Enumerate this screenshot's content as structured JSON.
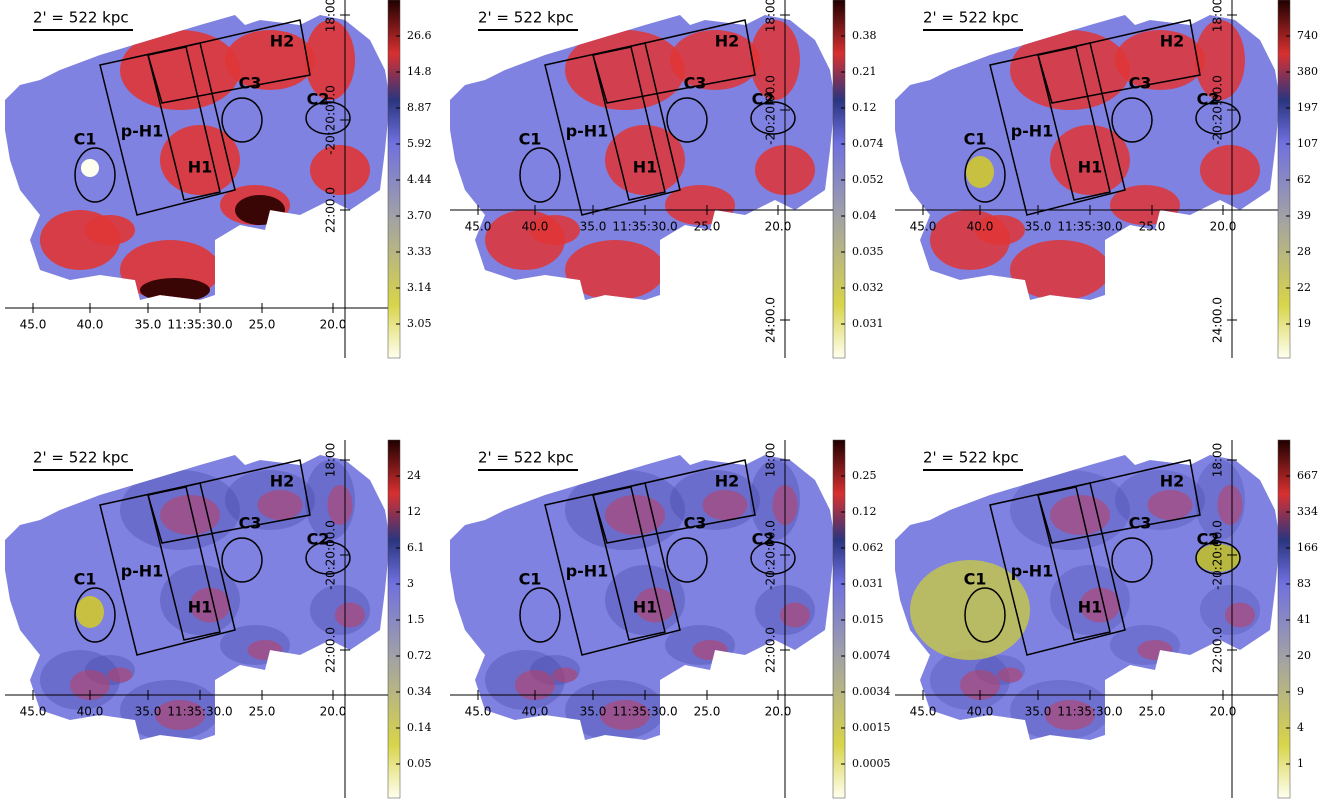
{
  "panels": [
    {
      "scale_label": "2' = 522 kpc",
      "regions": [
        "H2",
        "C3",
        "C2",
        "C1",
        "p-H1",
        "H1"
      ],
      "x_ticks": [
        "45.0",
        "40.0",
        "35.0",
        "11:35:30.0",
        "25.0",
        "20.0"
      ],
      "y_ticks": [
        "18:00",
        "-20:20:00.0",
        "22:00.0"
      ],
      "colorbar_ticks": [
        "26.6",
        "14.8",
        "8.87",
        "5.92",
        "4.44",
        "3.70",
        "3.33",
        "3.14",
        "3.05"
      ]
    },
    {
      "scale_label": "2' = 522 kpc",
      "regions": [
        "H2",
        "C3",
        "C2",
        "C1",
        "p-H1",
        "H1"
      ],
      "x_ticks": [
        "45.0",
        "40.0",
        "35.0",
        "11:35:30.0",
        "25.0",
        "20.0"
      ],
      "y_ticks": [
        "18:00",
        "-20:20:00.0",
        "24:00.0"
      ],
      "colorbar_ticks": [
        "0.38",
        "0.21",
        "0.12",
        "0.074",
        "0.052",
        "0.04",
        "0.035",
        "0.032",
        "0.031"
      ]
    },
    {
      "scale_label": "2' = 522 kpc",
      "regions": [
        "H2",
        "C3",
        "C2",
        "C1",
        "p-H1",
        "H1"
      ],
      "x_ticks": [
        "45.0",
        "40.0",
        "35.0",
        "11:35:30.0",
        "25.0",
        "20.0"
      ],
      "y_ticks": [
        "18:00",
        "-20:20:00.0",
        "24:00.0"
      ],
      "colorbar_ticks": [
        "740",
        "380",
        "197",
        "107",
        "62",
        "39",
        "28",
        "22",
        "19"
      ]
    },
    {
      "scale_label": "2' = 522 kpc",
      "regions": [
        "H2",
        "C3",
        "C2",
        "C1",
        "p-H1",
        "H1"
      ],
      "x_ticks": [
        "45.0",
        "40.0",
        "35.0",
        "11:35:30.0",
        "25.0",
        "20.0"
      ],
      "y_ticks": [
        "18:00",
        "-20:20:00.0",
        "22:00.0"
      ],
      "colorbar_ticks": [
        "24",
        "12",
        "6.1",
        "3",
        "1.5",
        "0.72",
        "0.34",
        "0.14",
        "0.05"
      ]
    },
    {
      "scale_label": "2' = 522 kpc",
      "regions": [
        "H2",
        "C3",
        "C2",
        "C1",
        "p-H1",
        "H1"
      ],
      "x_ticks": [
        "45.0",
        "40.0",
        "35.0",
        "11:35:30.0",
        "25.0",
        "20.0"
      ],
      "y_ticks": [
        "18:00",
        "-20:20:00.0",
        "22:00.0"
      ],
      "colorbar_ticks": [
        "0.25",
        "0.12",
        "0.062",
        "0.031",
        "0.015",
        "0.0074",
        "0.0034",
        "0.0015",
        "0.0005"
      ]
    },
    {
      "scale_label": "2' = 522 kpc",
      "regions": [
        "H2",
        "C3",
        "C2",
        "C1",
        "p-H1",
        "H1"
      ],
      "x_ticks": [
        "45.0",
        "40.0",
        "35.0",
        "11:35:30.0",
        "25.0",
        "20.0"
      ],
      "y_ticks": [
        "18:00",
        "-20:20:00.0",
        "22:00.0"
      ],
      "colorbar_ticks": [
        "667",
        "334",
        "166",
        "83",
        "41",
        "20",
        "9",
        "4",
        "1"
      ]
    }
  ]
}
